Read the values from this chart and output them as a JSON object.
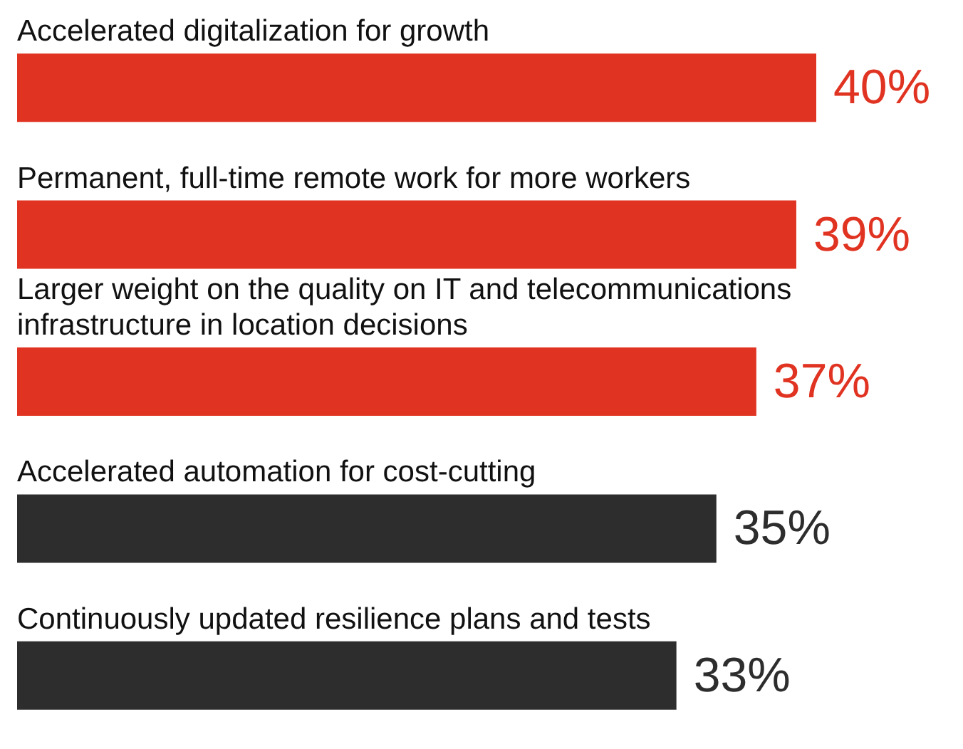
{
  "chart_data": {
    "type": "bar",
    "orientation": "horizontal",
    "categories": [
      "Accelerated digitalization for growth",
      "Permanent, full-time remote work for more workers",
      "Larger weight on the quality on IT and telecommunications infrastructure in location decisions",
      "Accelerated automation for cost-cutting",
      "Continuously updated resilience plans and tests"
    ],
    "values": [
      40,
      39,
      37,
      35,
      33
    ],
    "colors": [
      "#e03321",
      "#e03321",
      "#e03321",
      "#2d2d2d",
      "#2d2d2d"
    ],
    "value_labels": [
      "40%",
      "39%",
      "37%",
      "35%",
      "33%"
    ]
  }
}
